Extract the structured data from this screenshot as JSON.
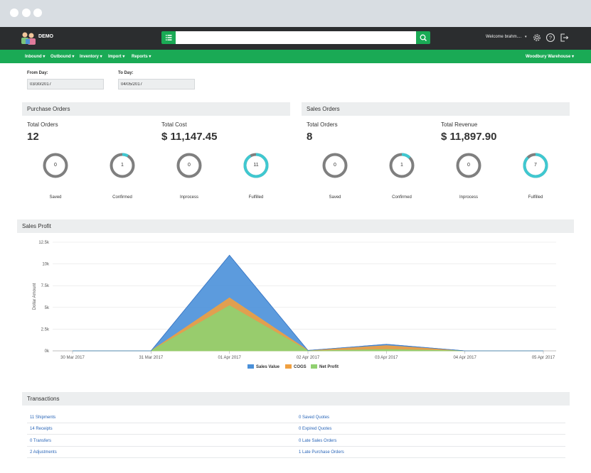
{
  "brand": {
    "name": "DEMO"
  },
  "header": {
    "search_placeholder": "",
    "welcome": "Welcome brahm....",
    "icons": [
      "settings-icon",
      "help-icon",
      "logout-icon"
    ]
  },
  "nav": {
    "items": [
      "Inbound ▾",
      "Outbound ▾",
      "Inventory ▾",
      "Import ▾",
      "Reports ▾"
    ],
    "warehouse": "Woodbury Warehouse ▾"
  },
  "filters": {
    "from_label": "From Day:",
    "from_value": "03/30/2017",
    "to_label": "To Day:",
    "to_value": "04/05/2017"
  },
  "purchase_orders": {
    "title": "Purchase Orders",
    "total_orders_label": "Total Orders",
    "total_orders": "12",
    "total_cost_label": "Total Cost",
    "total_cost": "$ 11,147.45",
    "statuses": [
      {
        "label": "Saved",
        "count": "0",
        "fraction": 0
      },
      {
        "label": "Confirmed",
        "count": "1",
        "fraction": 0.083
      },
      {
        "label": "Inprocess",
        "count": "0",
        "fraction": 0
      },
      {
        "label": "Fulfilled",
        "count": "11",
        "fraction": 0.917
      }
    ]
  },
  "sales_orders": {
    "title": "Sales Orders",
    "total_orders_label": "Total Orders",
    "total_orders": "8",
    "total_revenue_label": "Total Revenue",
    "total_revenue": "$ 11,897.90",
    "statuses": [
      {
        "label": "Saved",
        "count": "0",
        "fraction": 0
      },
      {
        "label": "Confirmed",
        "count": "1",
        "fraction": 0.125
      },
      {
        "label": "Inprocess",
        "count": "0",
        "fraction": 0
      },
      {
        "label": "Fulfilled",
        "count": "7",
        "fraction": 0.875
      }
    ]
  },
  "sales_profit": {
    "title": "Sales Profit"
  },
  "chart_data": {
    "type": "area",
    "x": [
      "30 Mar 2017",
      "31 Mar 2017",
      "01 Apr 2017",
      "02 Apr 2017",
      "03 Apr 2017",
      "04 Apr 2017",
      "05 Apr 2017"
    ],
    "ylabel": "Dollar Amount",
    "yticks": [
      "0k",
      "2.5k",
      "5k",
      "7.5k",
      "10k",
      "12.5k"
    ],
    "ylim": [
      0,
      12500
    ],
    "grid": true,
    "legend_position": "bottom",
    "series": [
      {
        "name": "Sales Value",
        "color": "#4a90d9",
        "values": [
          0,
          0,
          11000,
          50,
          750,
          0,
          0
        ]
      },
      {
        "name": "COGS",
        "color": "#f0a040",
        "values": [
          0,
          0,
          6100,
          50,
          600,
          0,
          0
        ]
      },
      {
        "name": "Net Profit",
        "color": "#90d070",
        "values": [
          0,
          0,
          5200,
          0,
          150,
          0,
          0
        ]
      }
    ]
  },
  "transactions": {
    "title": "Transactions",
    "left": [
      "11 Shipments",
      "14 Receipts",
      "0 Transfers",
      "2 Adjustments"
    ],
    "right": [
      "0 Saved Quotes",
      "0 Expired Quotes",
      "0 Late Sales Orders",
      "1 Late Purchase Orders"
    ]
  }
}
